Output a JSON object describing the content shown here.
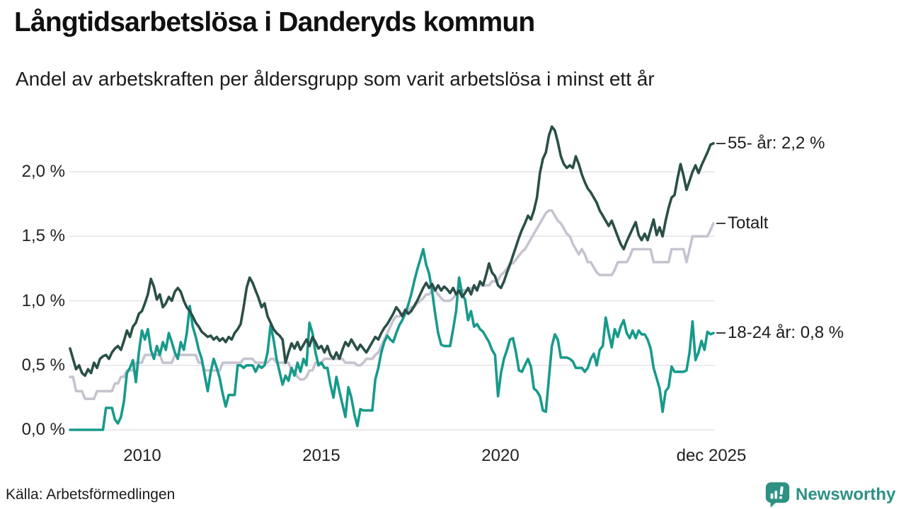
{
  "title": "Långtidsarbetslösa i Danderyds kommun",
  "subtitle": "Andel av arbetskraften per åldersgrupp som varit arbetslösa i minst ett år",
  "source": "Källa: Arbetsförmedlingen",
  "branding": {
    "name": "Newsworthy",
    "icon": "newsworthy-speech-bubble-bar-chart-icon",
    "color": "#2d9183"
  },
  "chart_data": {
    "type": "line",
    "title": "Långtidsarbetslösa i Danderyds kommun",
    "subtitle": "Andel av arbetskraften per åldersgrupp som varit arbetslösa i minst ett år",
    "x_unit": "month",
    "x_start": "jan 2008",
    "x_end": "dec 2025",
    "ylim": [
      0,
      2.4
    ],
    "grid": true,
    "grid_color": "#e4e3e8",
    "legend_position": "right-end-labels",
    "yticks": [
      {
        "label": "0,0 %",
        "value": 0.0
      },
      {
        "label": "0,5 %",
        "value": 0.5
      },
      {
        "label": "1,0 %",
        "value": 1.0
      },
      {
        "label": "1,5 %",
        "value": 1.5
      },
      {
        "label": "2,0 %",
        "value": 2.0
      }
    ],
    "xticks": [
      {
        "label": "2010",
        "year": 2010
      },
      {
        "label": "2015",
        "year": 2015
      },
      {
        "label": "2020",
        "year": 2020
      },
      {
        "label": "dec 2025",
        "year": 2025.92
      }
    ],
    "series": [
      {
        "name": "55- år",
        "end_label": "55- år: 2,2 %",
        "last_value": 2.2,
        "color": "#2a4f47",
        "values": [
          0.63,
          0.55,
          0.47,
          0.5,
          0.44,
          0.42,
          0.47,
          0.44,
          0.52,
          0.48,
          0.55,
          0.57,
          0.58,
          0.55,
          0.6,
          0.63,
          0.65,
          0.62,
          0.69,
          0.77,
          0.72,
          0.8,
          0.83,
          0.9,
          0.92,
          0.98,
          1.05,
          1.17,
          1.11,
          1.01,
          1.05,
          0.95,
          0.98,
          1.03,
          1.0,
          1.07,
          1.1,
          1.07,
          1.0,
          0.95,
          0.92,
          0.88,
          0.83,
          0.8,
          0.76,
          0.74,
          0.72,
          0.73,
          0.7,
          0.72,
          0.69,
          0.71,
          0.68,
          0.72,
          0.7,
          0.75,
          0.78,
          0.82,
          0.95,
          1.1,
          1.18,
          1.14,
          1.08,
          1.02,
          0.95,
          0.98,
          0.88,
          0.83,
          0.78,
          0.75,
          0.73,
          0.7,
          0.52,
          0.6,
          0.67,
          0.63,
          0.68,
          0.62,
          0.66,
          0.7,
          0.65,
          0.72,
          0.68,
          0.63,
          0.65,
          0.6,
          0.65,
          0.58,
          0.55,
          0.6,
          0.55,
          0.62,
          0.68,
          0.65,
          0.7,
          0.66,
          0.62,
          0.66,
          0.63,
          0.6,
          0.64,
          0.68,
          0.72,
          0.7,
          0.75,
          0.79,
          0.82,
          0.86,
          0.9,
          0.95,
          0.92,
          0.88,
          0.93,
          0.9,
          0.92,
          0.96,
          1.0,
          1.05,
          1.1,
          1.14,
          1.1,
          1.13,
          1.08,
          1.12,
          1.08,
          1.11,
          1.09,
          1.06,
          1.1,
          1.05,
          1.08,
          1.03,
          1.06,
          1.1,
          1.05,
          1.12,
          1.08,
          1.15,
          1.12,
          1.2,
          1.29,
          1.22,
          1.19,
          1.12,
          1.1,
          1.15,
          1.22,
          1.28,
          1.35,
          1.42,
          1.49,
          1.55,
          1.6,
          1.66,
          1.63,
          1.7,
          1.8,
          1.99,
          2.1,
          2.15,
          2.28,
          2.35,
          2.32,
          2.23,
          2.12,
          2.06,
          2.03,
          2.05,
          2.03,
          2.12,
          2.06,
          1.98,
          1.92,
          1.87,
          1.84,
          1.8,
          1.76,
          1.7,
          1.66,
          1.62,
          1.58,
          1.62,
          1.56,
          1.5,
          1.44,
          1.4,
          1.46,
          1.51,
          1.56,
          1.61,
          1.51,
          1.47,
          1.52,
          1.47,
          1.55,
          1.63,
          1.51,
          1.57,
          1.5,
          1.62,
          1.72,
          1.8,
          1.82,
          1.95,
          2.06,
          1.97,
          1.86,
          1.93,
          2.0,
          2.05,
          1.99,
          2.05,
          2.1,
          2.15,
          2.21,
          2.22
        ]
      },
      {
        "name": "Totalt",
        "end_label": "Totalt",
        "last_value": 1.6,
        "color": "#c6c3cf",
        "values": [
          0.41,
          0.41,
          0.3,
          0.3,
          0.3,
          0.24,
          0.24,
          0.24,
          0.24,
          0.3,
          0.3,
          0.3,
          0.3,
          0.3,
          0.3,
          0.36,
          0.36,
          0.41,
          0.41,
          0.46,
          0.46,
          0.46,
          0.52,
          0.52,
          0.52,
          0.58,
          0.58,
          0.58,
          0.58,
          0.58,
          0.58,
          0.52,
          0.52,
          0.52,
          0.52,
          0.58,
          0.58,
          0.58,
          0.58,
          0.58,
          0.58,
          0.58,
          0.58,
          0.52,
          0.52,
          0.46,
          0.46,
          0.46,
          0.46,
          0.46,
          0.46,
          0.52,
          0.52,
          0.52,
          0.52,
          0.52,
          0.52,
          0.52,
          0.55,
          0.55,
          0.55,
          0.55,
          0.52,
          0.52,
          0.52,
          0.52,
          0.52,
          0.55,
          0.55,
          0.52,
          0.52,
          0.52,
          0.52,
          0.52,
          0.46,
          0.46,
          0.41,
          0.39,
          0.39,
          0.41,
          0.46,
          0.46,
          0.52,
          0.52,
          0.52,
          0.55,
          0.55,
          0.55,
          0.55,
          0.55,
          0.55,
          0.55,
          0.52,
          0.52,
          0.52,
          0.52,
          0.5,
          0.5,
          0.52,
          0.55,
          0.55,
          0.55,
          0.58,
          0.6,
          0.65,
          0.7,
          0.75,
          0.8,
          0.85,
          0.88,
          0.88,
          0.9,
          0.9,
          0.92,
          0.95,
          0.95,
          0.98,
          1.0,
          1.02,
          1.05,
          1.05,
          1.08,
          1.08,
          1.05,
          1.02,
          1.0,
          1.0,
          1.0,
          1.02,
          1.05,
          1.08,
          1.08,
          1.08,
          1.08,
          1.1,
          1.1,
          1.1,
          1.12,
          1.12,
          1.12,
          1.12,
          1.15,
          1.15,
          1.16,
          1.2,
          1.22,
          1.25,
          1.29,
          1.29,
          1.32,
          1.35,
          1.38,
          1.4,
          1.44,
          1.48,
          1.52,
          1.56,
          1.6,
          1.64,
          1.68,
          1.7,
          1.7,
          1.66,
          1.62,
          1.6,
          1.56,
          1.52,
          1.5,
          1.44,
          1.4,
          1.36,
          1.4,
          1.36,
          1.3,
          1.3,
          1.26,
          1.22,
          1.2,
          1.2,
          1.2,
          1.2,
          1.2,
          1.24,
          1.3,
          1.3,
          1.3,
          1.3,
          1.34,
          1.4,
          1.4,
          1.4,
          1.4,
          1.4,
          1.4,
          1.4,
          1.3,
          1.3,
          1.3,
          1.3,
          1.3,
          1.3,
          1.4,
          1.4,
          1.4,
          1.4,
          1.4,
          1.3,
          1.4,
          1.5,
          1.5,
          1.5,
          1.5,
          1.5,
          1.5,
          1.55,
          1.6
        ]
      },
      {
        "name": "18-24 år",
        "end_label": "18-24 år: 0,8 %",
        "last_value": 0.8,
        "color": "#179a8b",
        "values": [
          0.0,
          0.0,
          0.0,
          0.0,
          0.0,
          0.0,
          0.0,
          0.0,
          0.0,
          0.0,
          0.0,
          0.0,
          0.17,
          0.17,
          0.17,
          0.08,
          0.05,
          0.1,
          0.22,
          0.44,
          0.48,
          0.54,
          0.37,
          0.6,
          0.77,
          0.7,
          0.78,
          0.62,
          0.55,
          0.65,
          0.58,
          0.68,
          0.62,
          0.75,
          0.68,
          0.6,
          0.55,
          0.68,
          0.62,
          0.75,
          0.96,
          0.8,
          0.72,
          0.62,
          0.55,
          0.42,
          0.3,
          0.45,
          0.55,
          0.48,
          0.4,
          0.28,
          0.18,
          0.27,
          0.27,
          0.27,
          0.5,
          0.5,
          0.48,
          0.5,
          0.5,
          0.5,
          0.45,
          0.5,
          0.48,
          0.5,
          0.6,
          0.81,
          0.7,
          0.55,
          0.45,
          0.35,
          0.42,
          0.38,
          0.48,
          0.42,
          0.52,
          0.45,
          0.55,
          0.5,
          0.83,
          0.75,
          0.6,
          0.5,
          0.52,
          0.48,
          0.48,
          0.35,
          0.25,
          0.41,
          0.3,
          0.2,
          0.1,
          0.33,
          0.25,
          0.12,
          0.03,
          0.16,
          0.15,
          0.15,
          0.15,
          0.15,
          0.39,
          0.48,
          0.6,
          0.68,
          0.73,
          0.7,
          0.68,
          0.75,
          0.81,
          0.85,
          0.9,
          0.97,
          1.05,
          1.15,
          1.24,
          1.32,
          1.4,
          1.28,
          1.21,
          1.07,
          0.9,
          0.75,
          0.66,
          0.65,
          0.65,
          0.65,
          0.78,
          0.92,
          1.18,
          1.05,
          1.01,
          0.85,
          0.92,
          0.8,
          0.82,
          0.78,
          0.76,
          0.72,
          0.68,
          0.62,
          0.58,
          0.26,
          0.44,
          0.55,
          0.62,
          0.7,
          0.71,
          0.6,
          0.46,
          0.45,
          0.5,
          0.55,
          0.49,
          0.32,
          0.3,
          0.26,
          0.15,
          0.14,
          0.4,
          0.65,
          0.74,
          0.7,
          0.56,
          0.56,
          0.56,
          0.55,
          0.53,
          0.48,
          0.48,
          0.48,
          0.45,
          0.48,
          0.55,
          0.59,
          0.5,
          0.62,
          0.65,
          0.87,
          0.75,
          0.64,
          0.78,
          0.72,
          0.8,
          0.85,
          0.75,
          0.71,
          0.77,
          0.71,
          0.77,
          0.74,
          0.74,
          0.7,
          0.63,
          0.48,
          0.4,
          0.32,
          0.14,
          0.3,
          0.33,
          0.49,
          0.45,
          0.45,
          0.45,
          0.45,
          0.46,
          0.6,
          0.84,
          0.54,
          0.6,
          0.69,
          0.62,
          0.76,
          0.74,
          0.75
        ]
      }
    ]
  }
}
